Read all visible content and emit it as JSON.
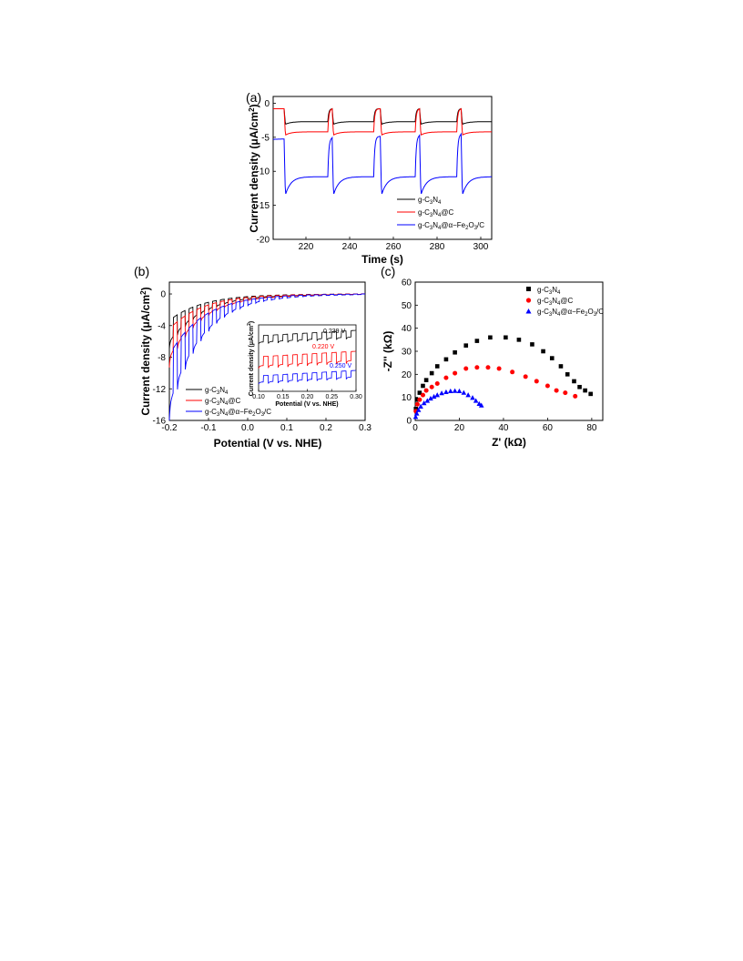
{
  "colors": {
    "black": "#000000",
    "red": "#ff0000",
    "blue": "#0000ff"
  },
  "legend_labels": [
    "g-C3N4",
    "g-C3N4@C",
    "g-C3N4@α-Fe2O3/C"
  ],
  "chart_data": [
    {
      "panel": "(a)",
      "type": "line",
      "xlabel": "Time (s)",
      "ylabel": "Current density (μA/cm2)",
      "xlim": [
        205,
        305
      ],
      "ylim": [
        -20,
        1
      ],
      "xticks": [
        220,
        240,
        260,
        280,
        300
      ],
      "yticks": [
        -20,
        -15,
        -10,
        -5,
        0
      ],
      "light_on_off_s": [
        [
          210,
          230
        ],
        [
          232,
          251
        ],
        [
          254,
          270
        ],
        [
          272,
          289
        ],
        [
          291,
          305
        ]
      ],
      "series": [
        {
          "name": "g-C3N4",
          "color": "#000000",
          "dark": -0.8,
          "light_peak": -3.2,
          "light_steady": -2.7
        },
        {
          "name": "g-C3N4@C",
          "color": "#ff0000",
          "dark": -0.8,
          "light_peak": -4.8,
          "light_steady": -4.2
        },
        {
          "name": "g-C3N4@α-Fe2O3/C",
          "color": "#0000ff",
          "dark_start": -5.3,
          "dark_end": -4.4,
          "light_peak": -14.2,
          "light_steady": -10.8
        }
      ]
    },
    {
      "panel": "(b)",
      "type": "line",
      "xlabel": "Potential (V vs. NHE)",
      "ylabel": "Current density (μA/cm2)",
      "xlim": [
        -0.2,
        0.3
      ],
      "ylim": [
        -16,
        1.5
      ],
      "xticks": [
        -0.2,
        -0.1,
        0.0,
        0.1,
        0.2,
        0.3
      ],
      "yticks": [
        -16,
        -12,
        -8,
        -4,
        0
      ],
      "series": [
        {
          "name": "g-C3N4",
          "color": "#000000",
          "value_at_-0.2": -6.0,
          "onset_V": 0.239
        },
        {
          "name": "g-C3N4@C",
          "color": "#ff0000",
          "value_at_-0.2": -8.0,
          "onset_V": 0.22
        },
        {
          "name": "g-C3N4@α-Fe2O3/C",
          "color": "#0000ff",
          "value_at_-0.2": -14.0,
          "onset_V": 0.25
        }
      ],
      "inset": {
        "xlabel": "Potential (V vs. NHE)",
        "ylabel": "Current density (μA/cm2)",
        "xlim": [
          0.1,
          0.3
        ],
        "xticks": [
          "0.10",
          "0.15",
          "0.20",
          "0.25",
          "0.30"
        ],
        "annotations": [
          {
            "text": "0.239 V",
            "color": "#000000"
          },
          {
            "text": "0.220 V",
            "color": "#ff0000"
          },
          {
            "text": "0.250 V",
            "color": "#0000ff"
          }
        ]
      }
    },
    {
      "panel": "(c)",
      "type": "scatter",
      "xlabel": "Z' (kΩ)",
      "ylabel": "-Z'' (kΩ)",
      "xlim": [
        0,
        85
      ],
      "ylim": [
        0,
        60
      ],
      "xticks": [
        0,
        20,
        40,
        60,
        80
      ],
      "yticks": [
        0,
        10,
        20,
        30,
        40,
        50,
        60
      ],
      "series": [
        {
          "name": "g-C3N4",
          "color": "#000000",
          "marker": "square",
          "x": [
            0.3,
            1,
            2,
            3.5,
            5,
            7.5,
            10,
            14,
            18,
            23,
            28,
            34,
            41,
            47,
            53,
            58,
            62,
            66,
            69,
            72,
            74.5,
            77,
            79.5
          ],
          "y": [
            5,
            9,
            12,
            15,
            17.5,
            20.5,
            23.5,
            26.5,
            29.5,
            32.5,
            34.5,
            36,
            36,
            35,
            33,
            30,
            27,
            23.5,
            20,
            17,
            14.5,
            13,
            11.5
          ]
        },
        {
          "name": "g-C3N4@C",
          "color": "#ff0000",
          "marker": "circle",
          "x": [
            0.3,
            1,
            2,
            3.5,
            5,
            7.5,
            10,
            14,
            18,
            23,
            28,
            33,
            38,
            44,
            50,
            55,
            60,
            64,
            68,
            72.5
          ],
          "y": [
            4,
            7,
            9,
            11,
            13,
            14.5,
            16,
            18.5,
            20.5,
            22.5,
            23,
            23,
            22.5,
            21,
            19,
            17,
            15,
            13,
            12,
            10.5
          ]
        },
        {
          "name": "g-C3N4@α-Fe2O3/C",
          "color": "#0000ff",
          "marker": "triangle",
          "x": [
            0.2,
            0.7,
            1.5,
            2.5,
            4,
            5.5,
            7,
            8.5,
            10,
            12,
            14,
            16,
            18,
            20,
            22,
            24,
            26,
            27.5,
            29,
            30
          ],
          "y": [
            1.5,
            3,
            4.5,
            6,
            7.5,
            8.5,
            9.5,
            10.3,
            11,
            11.8,
            12.3,
            12.7,
            12.8,
            12.7,
            12,
            11,
            9.8,
            8.5,
            7.2,
            6.5
          ]
        }
      ]
    }
  ]
}
